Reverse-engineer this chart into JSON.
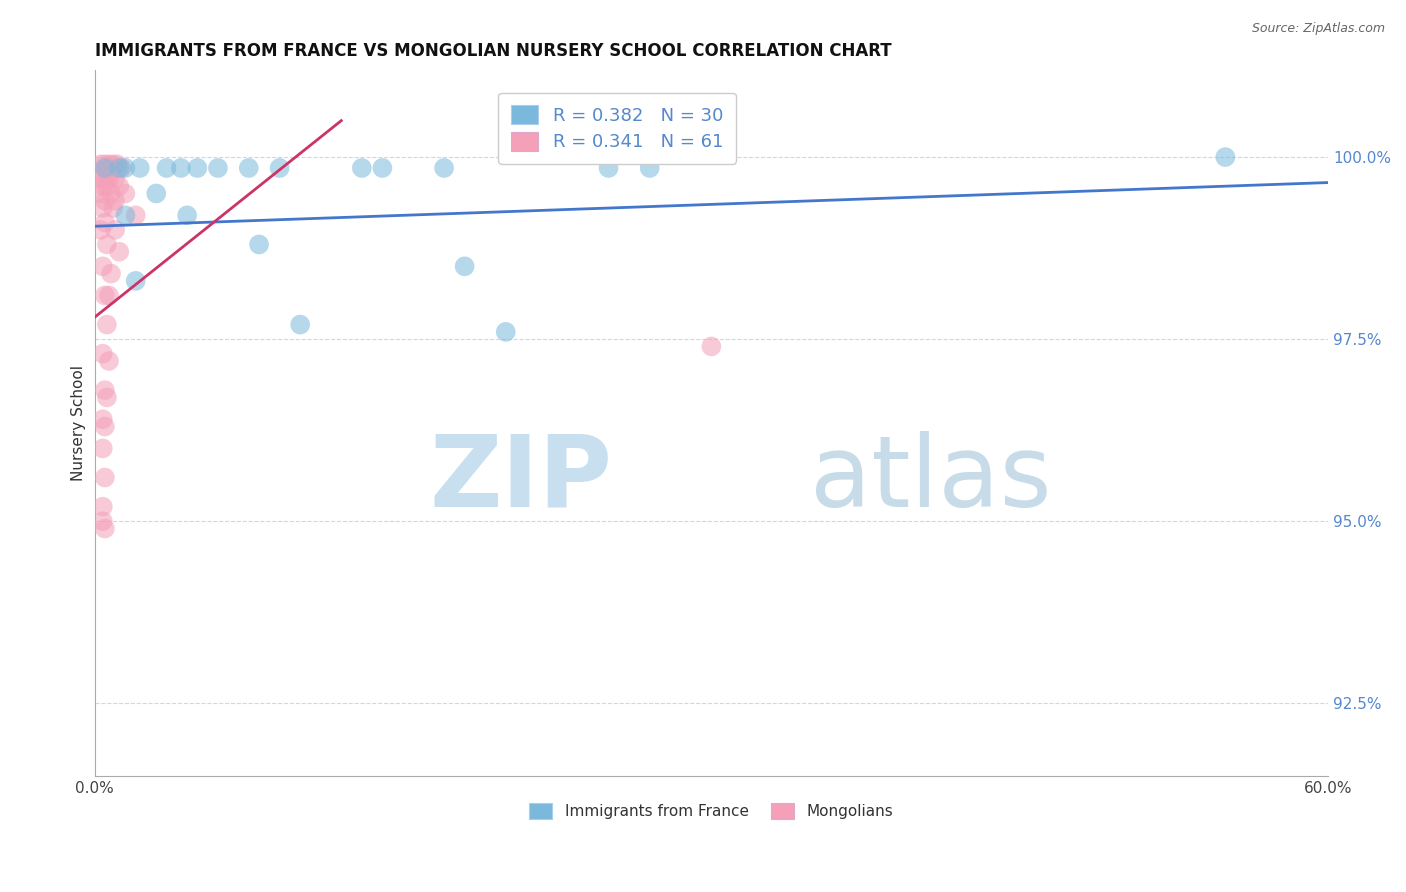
{
  "title": "IMMIGRANTS FROM FRANCE VS MONGOLIAN NURSERY SCHOOL CORRELATION CHART",
  "source": "Source: ZipAtlas.com",
  "ylabel": "Nursery School",
  "yticks": [
    92.5,
    95.0,
    97.5,
    100.0
  ],
  "ytick_labels": [
    "92.5%",
    "95.0%",
    "97.5%",
    "100.0%"
  ],
  "xlim": [
    0.0,
    60.0
  ],
  "ylim": [
    91.5,
    101.2
  ],
  "legend_color1": "#7ab8dc",
  "legend_color2": "#f4a0b8",
  "scatter_color_blue": "#7ab8dc",
  "scatter_color_pink": "#f4a0b8",
  "line_color_blue": "#4477cc",
  "line_color_pink": "#cc3366",
  "blue_points": [
    [
      0.5,
      99.85
    ],
    [
      1.2,
      99.85
    ],
    [
      1.5,
      99.85
    ],
    [
      2.2,
      99.85
    ],
    [
      3.5,
      99.85
    ],
    [
      4.2,
      99.85
    ],
    [
      5.0,
      99.85
    ],
    [
      6.0,
      99.85
    ],
    [
      7.5,
      99.85
    ],
    [
      9.0,
      99.85
    ],
    [
      13.0,
      99.85
    ],
    [
      14.0,
      99.85
    ],
    [
      17.0,
      99.85
    ],
    [
      25.0,
      99.85
    ],
    [
      27.0,
      99.85
    ],
    [
      3.0,
      99.5
    ],
    [
      1.5,
      99.2
    ],
    [
      4.5,
      99.2
    ],
    [
      8.0,
      98.8
    ],
    [
      18.0,
      98.5
    ],
    [
      2.0,
      98.3
    ],
    [
      10.0,
      97.7
    ],
    [
      20.0,
      97.6
    ],
    [
      55.0,
      100.0
    ]
  ],
  "pink_points": [
    [
      0.3,
      99.9
    ],
    [
      0.5,
      99.9
    ],
    [
      0.7,
      99.9
    ],
    [
      0.9,
      99.9
    ],
    [
      1.1,
      99.9
    ],
    [
      1.3,
      99.85
    ],
    [
      0.4,
      99.8
    ],
    [
      0.6,
      99.8
    ],
    [
      0.8,
      99.8
    ],
    [
      0.3,
      99.7
    ],
    [
      0.5,
      99.7
    ],
    [
      0.7,
      99.7
    ],
    [
      1.0,
      99.7
    ],
    [
      0.4,
      99.6
    ],
    [
      0.6,
      99.6
    ],
    [
      1.2,
      99.6
    ],
    [
      0.3,
      99.5
    ],
    [
      0.8,
      99.5
    ],
    [
      1.5,
      99.5
    ],
    [
      0.5,
      99.4
    ],
    [
      1.0,
      99.4
    ],
    [
      0.4,
      99.3
    ],
    [
      0.9,
      99.3
    ],
    [
      0.5,
      99.1
    ],
    [
      1.0,
      99.0
    ],
    [
      0.6,
      98.8
    ],
    [
      1.2,
      98.7
    ],
    [
      0.4,
      98.5
    ],
    [
      0.8,
      98.4
    ],
    [
      0.5,
      98.1
    ],
    [
      0.6,
      97.7
    ],
    [
      0.4,
      97.3
    ],
    [
      0.7,
      97.2
    ],
    [
      0.5,
      96.8
    ],
    [
      0.6,
      96.7
    ],
    [
      0.4,
      96.4
    ],
    [
      0.5,
      96.3
    ],
    [
      0.4,
      96.0
    ],
    [
      0.5,
      95.6
    ],
    [
      0.4,
      95.2
    ],
    [
      0.4,
      95.0
    ],
    [
      0.5,
      94.9
    ],
    [
      2.0,
      99.2
    ],
    [
      30.0,
      97.4
    ],
    [
      0.3,
      99.0
    ],
    [
      0.7,
      98.1
    ]
  ],
  "blue_line_x": [
    0.0,
    60.0
  ],
  "blue_line_y": [
    99.05,
    99.65
  ],
  "pink_line_x": [
    0.0,
    12.0
  ],
  "pink_line_y": [
    97.8,
    100.5
  ]
}
